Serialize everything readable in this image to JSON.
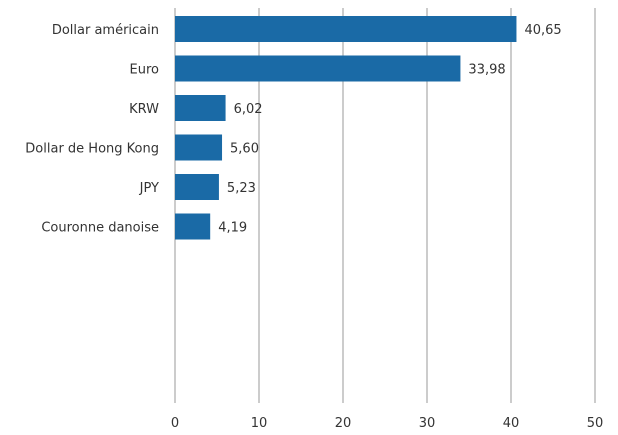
{
  "chart_data": {
    "type": "bar",
    "orientation": "horizontal",
    "categories": [
      "Dollar américain",
      "Euro",
      "KRW",
      "Dollar de Hong Kong",
      "JPY",
      "Couronne danoise"
    ],
    "values": [
      40.65,
      33.98,
      6.02,
      5.6,
      5.23,
      4.19
    ],
    "value_labels": [
      "40,65",
      "33,98",
      "6,02",
      "5,60",
      "5,23",
      "4,19"
    ],
    "xticks": [
      0,
      10,
      20,
      30,
      40,
      50
    ],
    "xtick_labels": [
      "0",
      "10",
      "20",
      "30",
      "40",
      "50"
    ],
    "xlim": [
      0,
      50
    ],
    "grid": "vertical",
    "legend": "none",
    "title": "",
    "xlabel": "",
    "ylabel": "",
    "colors": {
      "bar": "#1a6aa6",
      "grid": "#9a9a9a",
      "text": "#333333"
    }
  }
}
